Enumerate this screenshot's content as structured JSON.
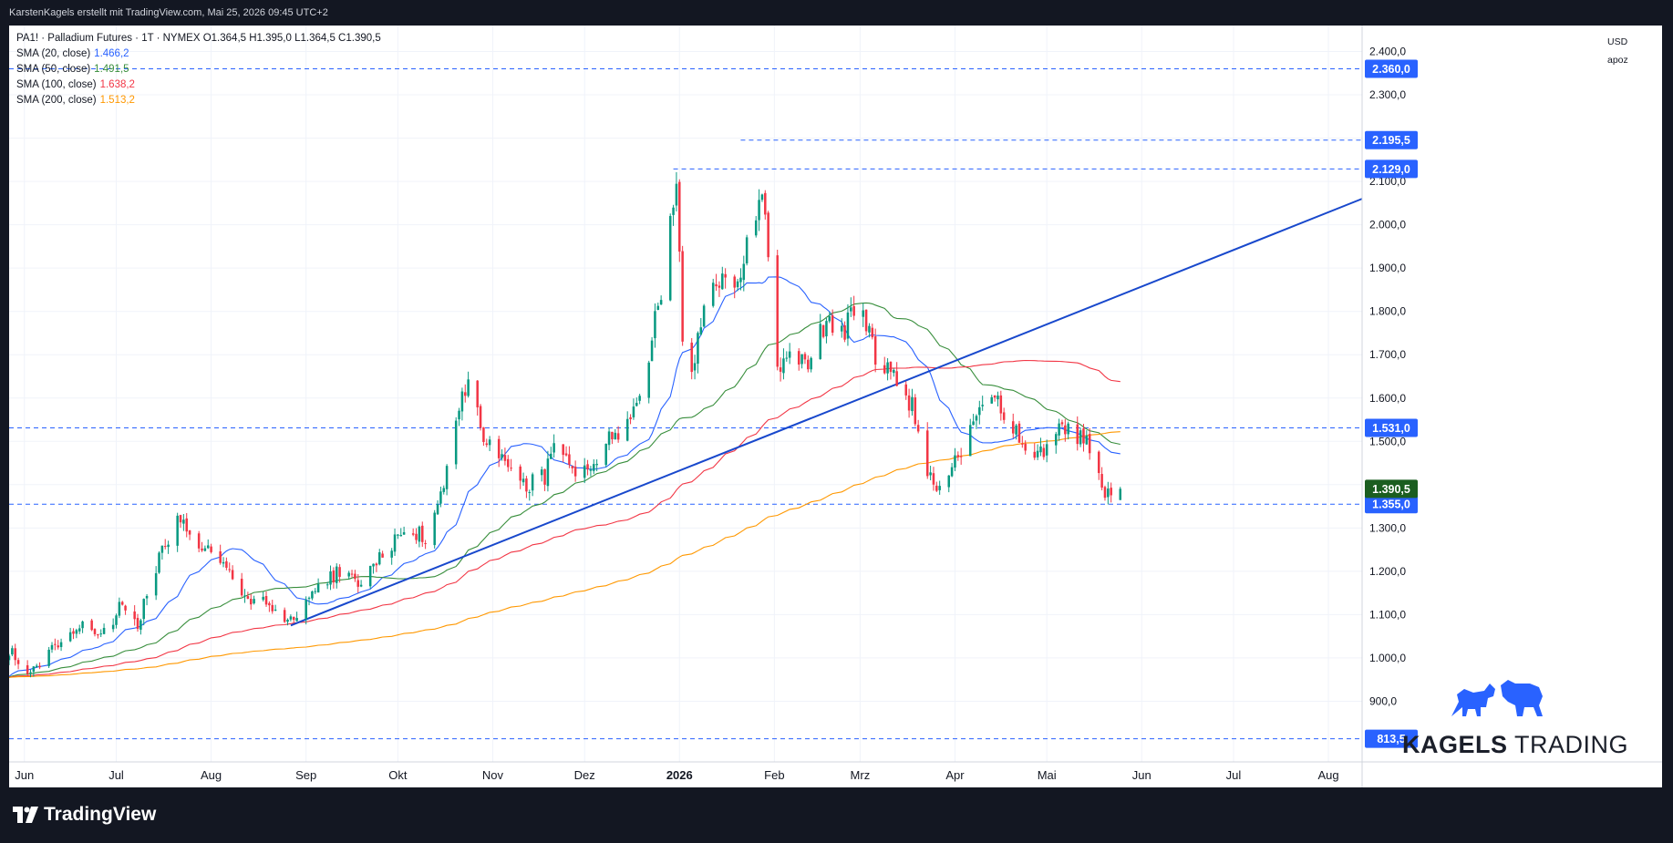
{
  "header": {
    "attribution": "KarstenKagels erstellt mit TradingView.com, Mai 25, 2026 09:45 UTC+2"
  },
  "legend": {
    "symbol_line": "PA1! · Palladium Futures · 1T · NYMEX  O1.364,5  H1.395,0  L1.364,5  C1.390,5",
    "indicators": [
      {
        "label": "SMA (20, close)",
        "value": "1.466,2",
        "color": "#2962ff"
      },
      {
        "label": "SMA (50, close)",
        "value": "1.491,5",
        "color": "#388e3c"
      },
      {
        "label": "SMA (100, close)",
        "value": "1.638,2",
        "color": "#f23645"
      },
      {
        "label": "SMA (200, close)",
        "value": "1.513,2",
        "color": "#ff9800"
      }
    ]
  },
  "price_axis": {
    "currency": "USD",
    "scale_mode": "apoz"
  },
  "branding": {
    "watermark_part1": "KAGELS",
    "watermark_part2": "TRADING",
    "footer_logo": "TradingView"
  },
  "colors": {
    "up": "#089981",
    "down": "#f23645",
    "level_line": "#2962ff",
    "trendline": "#1848cc",
    "sma20": "#2962ff",
    "sma50": "#388e3c",
    "sma100": "#f23645",
    "sma200": "#ff9800",
    "last_price_label": "#1b5e20"
  },
  "chart_data": {
    "type": "candlestick",
    "title": "PA1! · Palladium Futures · 1T · NYMEX",
    "y_range": [
      760,
      2460
    ],
    "y_ticks": [
      {
        "value": 900,
        "label": "900,0"
      },
      {
        "value": 1000,
        "label": "1.000,0"
      },
      {
        "value": 1100,
        "label": "1.100,0"
      },
      {
        "value": 1200,
        "label": "1.200,0"
      },
      {
        "value": 1300,
        "label": "1.300,0"
      },
      {
        "value": 1400,
        "label": "1.400,0"
      },
      {
        "value": 1500,
        "label": "1.500,0"
      },
      {
        "value": 1600,
        "label": "1.600,0"
      },
      {
        "value": 1700,
        "label": "1.700,0"
      },
      {
        "value": 1800,
        "label": "1.800,0"
      },
      {
        "value": 1900,
        "label": "1.900,0"
      },
      {
        "value": 2000,
        "label": "2.000,0"
      },
      {
        "value": 2100,
        "label": "2.100,0"
      },
      {
        "value": 2200,
        "label": "2.200,0"
      },
      {
        "value": 2300,
        "label": "2.300,0"
      },
      {
        "value": 2400,
        "label": "2.400,0"
      }
    ],
    "x_range": [
      "2025-05-27",
      "2026-08-12"
    ],
    "x_ticks": [
      {
        "date": "2025-06-01",
        "label": "Jun",
        "bold": false
      },
      {
        "date": "2025-07-01",
        "label": "Jul",
        "bold": false
      },
      {
        "date": "2025-08-01",
        "label": "Aug",
        "bold": false
      },
      {
        "date": "2025-09-01",
        "label": "Sep",
        "bold": false
      },
      {
        "date": "2025-10-01",
        "label": "Okt",
        "bold": false
      },
      {
        "date": "2025-11-01",
        "label": "Nov",
        "bold": false
      },
      {
        "date": "2025-12-01",
        "label": "Dez",
        "bold": false
      },
      {
        "date": "2026-01-01",
        "label": "2026",
        "bold": true
      },
      {
        "date": "2026-02-01",
        "label": "Feb",
        "bold": false
      },
      {
        "date": "2026-03-01",
        "label": "Mrz",
        "bold": false
      },
      {
        "date": "2026-04-01",
        "label": "Apr",
        "bold": false
      },
      {
        "date": "2026-05-01",
        "label": "Mai",
        "bold": false
      },
      {
        "date": "2026-06-01",
        "label": "Jun",
        "bold": false
      },
      {
        "date": "2026-07-01",
        "label": "Jul",
        "bold": false
      },
      {
        "date": "2026-08-01",
        "label": "Aug",
        "bold": false
      }
    ],
    "horizontal_levels": [
      {
        "value": 2360,
        "label": "2.360,0",
        "start": "2025-05-27"
      },
      {
        "value": 2195.5,
        "label": "2.195,5",
        "start": "2026-01-21"
      },
      {
        "value": 2129,
        "label": "2.129,0",
        "start": "2025-12-30"
      },
      {
        "value": 1531,
        "label": "1.531,0",
        "start": "2025-05-27"
      },
      {
        "value": 1355,
        "label": "1.355,0",
        "start": "2025-05-27"
      },
      {
        "value": 813.5,
        "label": "813,5",
        "start": "2025-05-27"
      }
    ],
    "last_price": {
      "value": 1390.5,
      "label": "1.390,5"
    },
    "trendline": {
      "start": [
        "2025-08-27",
        1075
      ],
      "end": [
        "2026-08-12",
        2060
      ]
    },
    "anchors": [
      [
        "2025-05-27",
        1020
      ],
      [
        "2025-06-03",
        960
      ],
      [
        "2025-06-12",
        1040
      ],
      [
        "2025-06-20",
        1080
      ],
      [
        "2025-06-28",
        1050
      ],
      [
        "2025-07-03",
        1130
      ],
      [
        "2025-07-08",
        1080
      ],
      [
        "2025-07-15",
        1230
      ],
      [
        "2025-07-21",
        1330
      ],
      [
        "2025-07-29",
        1260
      ],
      [
        "2025-08-04",
        1220
      ],
      [
        "2025-08-12",
        1140
      ],
      [
        "2025-08-20",
        1120
      ],
      [
        "2025-08-27",
        1085
      ],
      [
        "2025-09-03",
        1150
      ],
      [
        "2025-09-12",
        1200
      ],
      [
        "2025-09-19",
        1170
      ],
      [
        "2025-09-26",
        1240
      ],
      [
        "2025-10-03",
        1300
      ],
      [
        "2025-10-10",
        1280
      ],
      [
        "2025-10-15",
        1380
      ],
      [
        "2025-10-21",
        1580
      ],
      [
        "2025-10-25",
        1660
      ],
      [
        "2025-10-29",
        1500
      ],
      [
        "2025-11-05",
        1450
      ],
      [
        "2025-11-12",
        1400
      ],
      [
        "2025-11-18",
        1420
      ],
      [
        "2025-11-22",
        1500
      ],
      [
        "2025-11-28",
        1400
      ],
      [
        "2025-12-03",
        1450
      ],
      [
        "2025-12-10",
        1510
      ],
      [
        "2025-12-16",
        1550
      ],
      [
        "2025-12-22",
        1700
      ],
      [
        "2025-12-26",
        1850
      ],
      [
        "2025-12-31",
        2100
      ],
      [
        "2026-01-02",
        1750
      ],
      [
        "2026-01-05",
        1650
      ],
      [
        "2026-01-09",
        1800
      ],
      [
        "2026-01-14",
        1870
      ],
      [
        "2026-01-19",
        1850
      ],
      [
        "2026-01-23",
        1950
      ],
      [
        "2026-01-26",
        2040
      ],
      [
        "2026-01-28",
        2080
      ],
      [
        "2026-01-30",
        1950
      ],
      [
        "2026-02-02",
        1660
      ],
      [
        "2026-02-06",
        1700
      ],
      [
        "2026-02-12",
        1680
      ],
      [
        "2026-02-18",
        1780
      ],
      [
        "2026-02-24",
        1760
      ],
      [
        "2026-03-01",
        1820
      ],
      [
        "2026-03-06",
        1700
      ],
      [
        "2026-03-12",
        1650
      ],
      [
        "2026-03-18",
        1580
      ],
      [
        "2026-03-22",
        1450
      ],
      [
        "2026-03-26",
        1380
      ],
      [
        "2026-03-30",
        1420
      ],
      [
        "2026-04-03",
        1480
      ],
      [
        "2026-04-08",
        1550
      ],
      [
        "2026-04-13",
        1600
      ],
      [
        "2026-04-18",
        1560
      ],
      [
        "2026-04-23",
        1500
      ],
      [
        "2026-04-29",
        1470
      ],
      [
        "2026-05-04",
        1530
      ],
      [
        "2026-05-08",
        1520
      ],
      [
        "2026-05-13",
        1510
      ],
      [
        "2026-05-17",
        1440
      ],
      [
        "2026-05-20",
        1370
      ],
      [
        "2026-05-25",
        1390.5
      ]
    ]
  }
}
